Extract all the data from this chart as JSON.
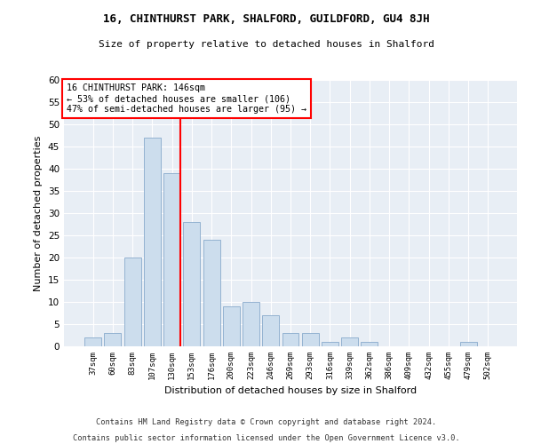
{
  "title": "16, CHINTHURST PARK, SHALFORD, GUILDFORD, GU4 8JH",
  "subtitle": "Size of property relative to detached houses in Shalford",
  "xlabel": "Distribution of detached houses by size in Shalford",
  "ylabel": "Number of detached properties",
  "categories": [
    "37sqm",
    "60sqm",
    "83sqm",
    "107sqm",
    "130sqm",
    "153sqm",
    "176sqm",
    "200sqm",
    "223sqm",
    "246sqm",
    "269sqm",
    "293sqm",
    "316sqm",
    "339sqm",
    "362sqm",
    "386sqm",
    "409sqm",
    "432sqm",
    "455sqm",
    "479sqm",
    "502sqm"
  ],
  "values": [
    2,
    3,
    20,
    47,
    39,
    28,
    24,
    9,
    10,
    7,
    3,
    3,
    1,
    2,
    1,
    0,
    0,
    0,
    0,
    1,
    0
  ],
  "bar_color": "#ccdded",
  "bar_edge_color": "#88aacc",
  "vline_index": 4,
  "vline_color": "red",
  "annotation_text": "16 CHINTHURST PARK: 146sqm\n← 53% of detached houses are smaller (106)\n47% of semi-detached houses are larger (95) →",
  "annotation_box_color": "white",
  "annotation_box_edge_color": "red",
  "ylim": [
    0,
    60
  ],
  "yticks": [
    0,
    5,
    10,
    15,
    20,
    25,
    30,
    35,
    40,
    45,
    50,
    55,
    60
  ],
  "background_color": "#e8eef5",
  "footer_line1": "Contains HM Land Registry data © Crown copyright and database right 2024.",
  "footer_line2": "Contains public sector information licensed under the Open Government Licence v3.0."
}
